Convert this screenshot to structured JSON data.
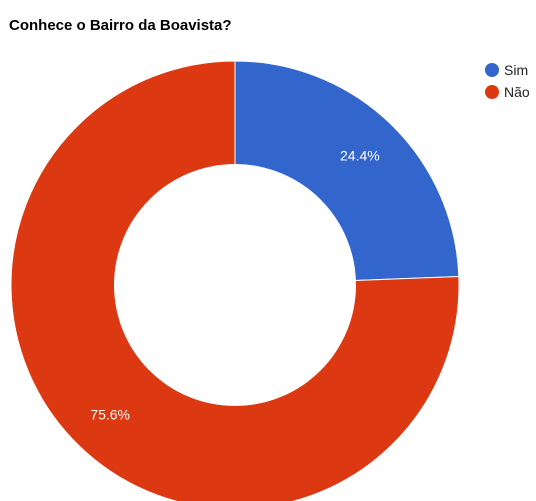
{
  "chart_data": {
    "type": "pie",
    "title": "Conhece o Bairro da Boavista?",
    "categories": [
      "Sim",
      "Não"
    ],
    "values": [
      24.4,
      75.6
    ],
    "labels": [
      "24.4%",
      "75.6%"
    ],
    "colors": [
      "#3366cc",
      "#dc3912"
    ],
    "legend_position": "right",
    "donut": true
  }
}
